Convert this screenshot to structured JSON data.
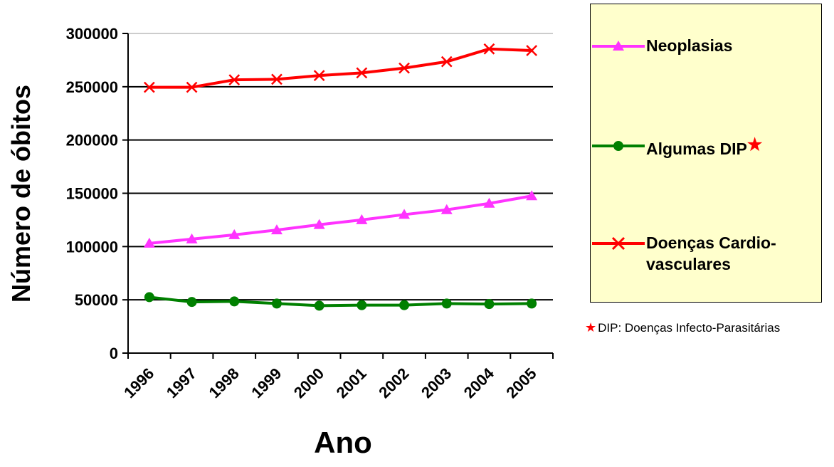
{
  "chart_data": {
    "type": "line",
    "title": "",
    "xlabel": "Ano",
    "ylabel": "Número de óbitos",
    "categories": [
      "1996",
      "1997",
      "1998",
      "1999",
      "2000",
      "2001",
      "2002",
      "2003",
      "2004",
      "2005"
    ],
    "ylim": [
      0,
      300000
    ],
    "yticks": [
      "0",
      "50000",
      "100000",
      "150000",
      "200000",
      "250000",
      "300000"
    ],
    "grid": "horizontal",
    "legend_position": "right",
    "series": [
      {
        "name": "Neoplasias",
        "color": "#ff33ff",
        "marker": "triangle",
        "values": [
          103000,
          107000,
          111000,
          115500,
          120500,
          125000,
          130000,
          134500,
          140500,
          147500
        ]
      },
      {
        "name": "Algumas DIP",
        "color": "#008000",
        "marker": "circle",
        "values": [
          52500,
          48000,
          48500,
          46500,
          44500,
          45000,
          45000,
          46500,
          46000,
          46500
        ]
      },
      {
        "name": "Doenças Cardio-vasculares",
        "color": "#ff0000",
        "marker": "x",
        "values": [
          249500,
          249500,
          256500,
          257000,
          260500,
          263000,
          267500,
          273500,
          285500,
          284000
        ]
      }
    ]
  },
  "legend": {
    "neoplasias": "Neoplasias",
    "dip": "Algumas DIP",
    "dip_star": "★",
    "cardio": "Doenças Cardio-vasculares"
  },
  "footnote": {
    "star": "★",
    "text": "DIP: Doenças Infecto-Parasitárias"
  }
}
